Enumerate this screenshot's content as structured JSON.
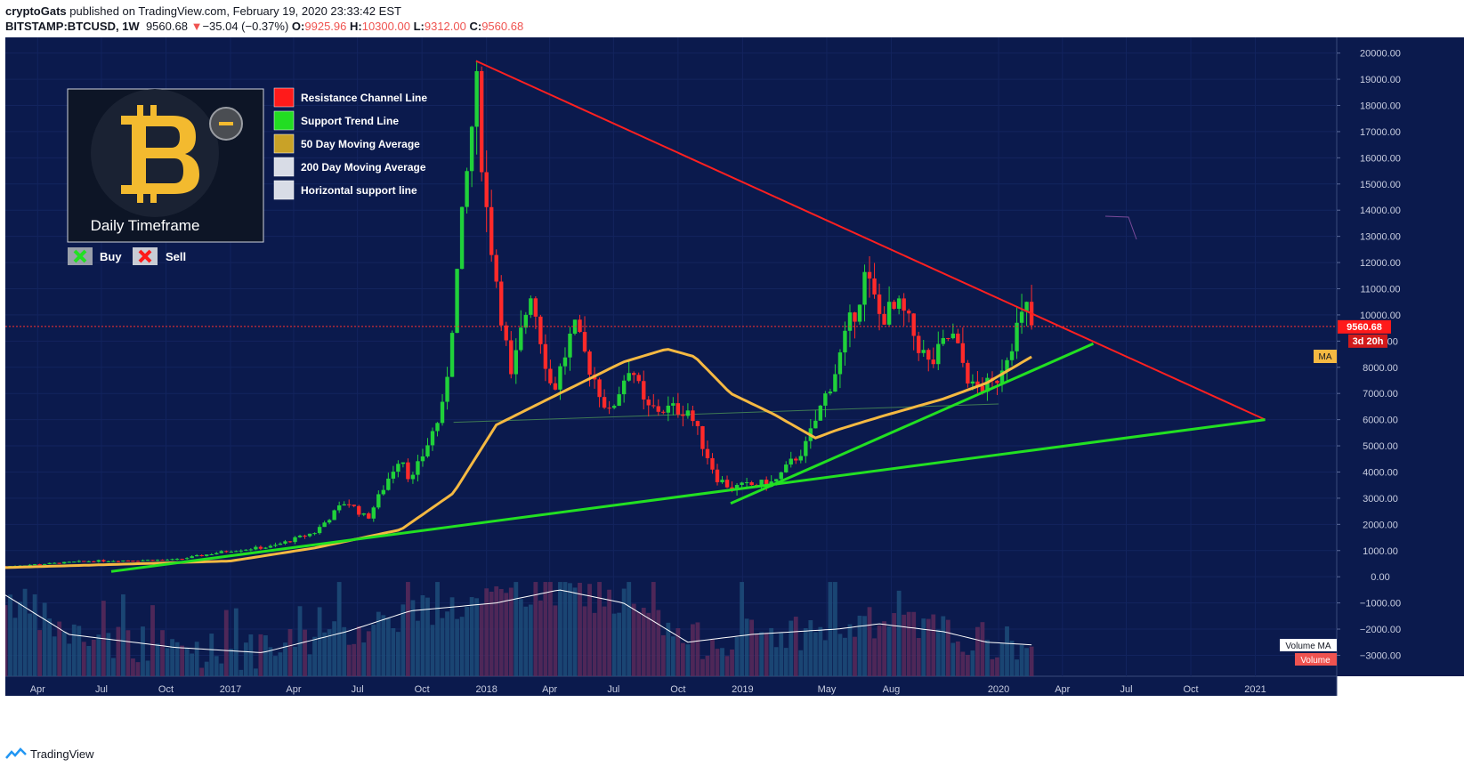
{
  "header": {
    "author": "cryptoGats",
    "published_text": "published on TradingView.com, February 19, 2020 23:33:42 EST",
    "symbol": "BITSTAMP:BTCUSD, 1W",
    "last": "9560.68",
    "change_arrow": "▼",
    "change": "−35.04 (−0.37%)",
    "o_label": "O:",
    "o": "9925.96",
    "h_label": "H:",
    "h": "10300.00",
    "l_label": "L:",
    "l": "9312.00",
    "c_label": "C:",
    "c": "9560.68"
  },
  "legend": {
    "logo_caption": "Daily Timeframe",
    "items": [
      {
        "label": "Resistance Channel Line",
        "color": "#ff1a1a"
      },
      {
        "label": "Support Trend Line",
        "color": "#22dd22"
      },
      {
        "label": "50 Day Moving Average",
        "color": "#c9a227"
      },
      {
        "label": "200 Day Moving Average",
        "color": "#d8dce6"
      },
      {
        "label": "Horizontal support line",
        "color": "#d8dce6"
      }
    ],
    "buy_label": "Buy",
    "sell_label": "Sell"
  },
  "price_tag": {
    "value": "9560.68",
    "countdown": "3d 20h",
    "ma_tag": "MA"
  },
  "volume_labels": {
    "ma": "Volume MA",
    "vol": "Volume"
  },
  "footer": {
    "brand": "TradingView"
  },
  "colors": {
    "background": "#0b1a4d",
    "up": "#20d13a",
    "down": "#ff2a2a",
    "resistance": "#ff2020",
    "support": "#22e022",
    "ma50": "#f5b942",
    "volume_ma": "#ffffff"
  },
  "chart_data": {
    "type": "candlestick",
    "symbol": "BITSTAMP:BTCUSD",
    "interval": "1W",
    "y_ticks": [
      "20000.00",
      "19000.00",
      "18000.00",
      "17000.00",
      "16000.00",
      "15000.00",
      "14000.00",
      "13000.00",
      "12000.00",
      "11000.00",
      "10000.00",
      "9000.00",
      "8000.00",
      "7000.00",
      "6000.00",
      "5000.00",
      "4000.00",
      "3000.00",
      "2000.00",
      "1000.00",
      "0.00",
      "−1000.00",
      "−2000.00",
      "−3000.00"
    ],
    "x_ticks": [
      "Apr",
      "Jul",
      "Oct",
      "2017",
      "Apr",
      "Jul",
      "Oct",
      "2018",
      "Apr",
      "Jul",
      "Oct",
      "2019",
      "May",
      "Aug",
      "2020",
      "Apr",
      "Jul",
      "Oct",
      "2021"
    ],
    "ylim": [
      -3800,
      20600
    ],
    "x_range": [
      "2016-02-15",
      "2021-02-15"
    ],
    "price_anchors": [
      [
        "2016-02-15",
        400
      ],
      [
        "2016-06-15",
        600
      ],
      [
        "2016-10-15",
        650
      ],
      [
        "2017-01-01",
        1000
      ],
      [
        "2017-03-01",
        1150
      ],
      [
        "2017-05-01",
        1700
      ],
      [
        "2017-06-15",
        2900
      ],
      [
        "2017-07-15",
        2200
      ],
      [
        "2017-09-01",
        4700
      ],
      [
        "2017-09-15",
        3600
      ],
      [
        "2017-11-01",
        6500
      ],
      [
        "2017-12-17",
        18800
      ],
      [
        "2018-01-01",
        14000
      ],
      [
        "2018-02-05",
        7500
      ],
      [
        "2018-03-05",
        11000
      ],
      [
        "2018-04-05",
        7000
      ],
      [
        "2018-05-05",
        9500
      ],
      [
        "2018-06-25",
        6200
      ],
      [
        "2018-07-25",
        8200
      ],
      [
        "2018-08-15",
        6400
      ],
      [
        "2018-10-15",
        6400
      ],
      [
        "2018-11-25",
        3800
      ],
      [
        "2018-12-15",
        3400
      ],
      [
        "2019-02-15",
        3600
      ],
      [
        "2019-04-01",
        5000
      ],
      [
        "2019-05-15",
        8000
      ],
      [
        "2019-06-25",
        11500
      ],
      [
        "2019-07-15",
        10000
      ],
      [
        "2019-08-15",
        10200
      ],
      [
        "2019-09-25",
        8000
      ],
      [
        "2019-10-25",
        9300
      ],
      [
        "2019-11-25",
        7200
      ],
      [
        "2019-12-25",
        7300
      ],
      [
        "2020-01-25",
        9400
      ],
      [
        "2020-02-10",
        10200
      ],
      [
        "2020-02-17",
        9560
      ]
    ],
    "ma50_anchors": [
      [
        "2016-02-15",
        350
      ],
      [
        "2017-01-01",
        600
      ],
      [
        "2017-05-01",
        1100
      ],
      [
        "2017-09-01",
        1800
      ],
      [
        "2017-11-15",
        3200
      ],
      [
        "2018-01-15",
        5800
      ],
      [
        "2018-04-15",
        7000
      ],
      [
        "2018-07-15",
        8200
      ],
      [
        "2018-09-15",
        8700
      ],
      [
        "2018-10-25",
        8400
      ],
      [
        "2018-12-15",
        7000
      ],
      [
        "2019-02-15",
        6200
      ],
      [
        "2019-04-15",
        5300
      ],
      [
        "2019-05-15",
        5600
      ],
      [
        "2019-07-15",
        6100
      ],
      [
        "2019-10-15",
        6800
      ],
      [
        "2019-12-15",
        7400
      ],
      [
        "2020-02-17",
        8400
      ]
    ],
    "volume_ma_anchors": [
      [
        "2016-02-15",
        -700
      ],
      [
        "2016-05-15",
        -2200
      ],
      [
        "2016-10-15",
        -2700
      ],
      [
        "2017-02-15",
        -2900
      ],
      [
        "2017-06-15",
        -2100
      ],
      [
        "2017-09-15",
        -1300
      ],
      [
        "2018-01-15",
        -1000
      ],
      [
        "2018-04-15",
        -500
      ],
      [
        "2018-07-15",
        -1000
      ],
      [
        "2018-10-15",
        -2500
      ],
      [
        "2019-01-15",
        -2200
      ],
      [
        "2019-05-15",
        -2000
      ],
      [
        "2019-07-15",
        -1800
      ],
      [
        "2019-10-15",
        -2100
      ],
      [
        "2019-12-15",
        -2500
      ],
      [
        "2020-02-17",
        -2600
      ]
    ],
    "resistance_line": [
      [
        "2017-12-17",
        19700
      ],
      [
        "2021-01-15",
        6000
      ]
    ],
    "support_lines": [
      [
        [
          "2016-07-15",
          200
        ],
        [
          "2021-01-15",
          6000
        ]
      ],
      [
        [
          "2018-12-15",
          2800
        ],
        [
          "2020-05-15",
          8900
        ]
      ]
    ],
    "horizontal_support": [
      [
        "2017-11-15",
        5900
      ],
      [
        "2020-01-01",
        6600
      ]
    ],
    "current_price": 9560.68
  }
}
